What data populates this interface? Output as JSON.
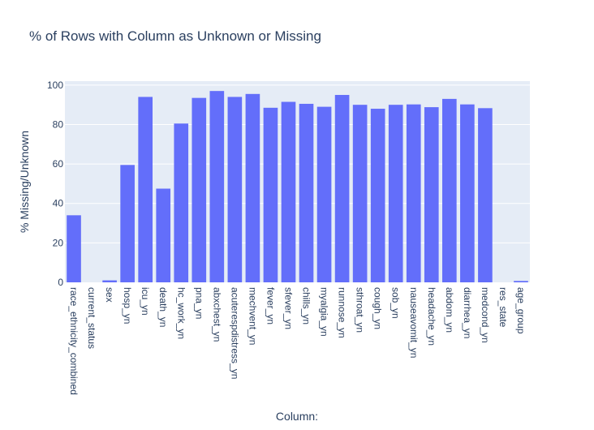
{
  "chart_data": {
    "type": "bar",
    "title": "% of Rows with Column as Unknown or Missing",
    "xlabel": "Column:",
    "ylabel": "% Missing/Unknown",
    "ylim": [
      0,
      102
    ],
    "yticks": [
      0,
      20,
      40,
      60,
      80,
      100
    ],
    "grid": true,
    "colors": {
      "bar": "#636efa",
      "plot_bg": "#e5ecf6",
      "text": "#2a3f5f"
    },
    "categories": [
      "race_ethnicity_combined",
      "current_status",
      "sex",
      "hosp_yn",
      "icu_yn",
      "death_yn",
      "hc_work_yn",
      "pna_yn",
      "abxchest_yn",
      "acuterespdistress_yn",
      "mechvent_yn",
      "fever_yn",
      "sfever_yn",
      "chills_yn",
      "myalgia_yn",
      "runnose_yn",
      "sthroat_yn",
      "cough_yn",
      "sob_yn",
      "nauseavomit_yn",
      "headache_yn",
      "abdom_yn",
      "diarrhea_yn",
      "medcond_yn",
      "res_state",
      "age_group"
    ],
    "values": [
      34,
      0,
      1,
      59.5,
      94,
      47.5,
      80.5,
      93.5,
      97,
      94,
      95.5,
      88.5,
      91.5,
      90.5,
      89,
      95,
      90,
      88,
      90,
      90.2,
      88.8,
      93,
      90.2,
      88.3,
      0,
      0.7
    ]
  }
}
